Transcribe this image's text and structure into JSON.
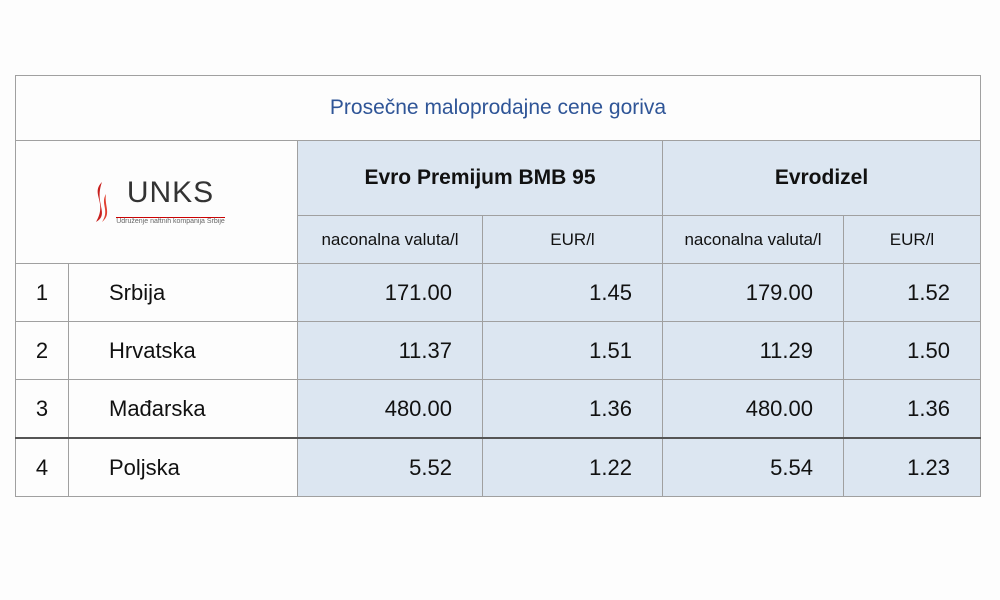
{
  "title": "Prosečne maloprodajne cene goriva",
  "logo": {
    "name": "UNKS",
    "tagline": "Udruženje naftnih kompanija Srbije"
  },
  "table": {
    "groups": [
      "Evro Premijum BMB 95",
      "Evrodizel"
    ],
    "subheaders": [
      "naconalna valuta/l",
      "EUR/l",
      "naconalna valuta/l",
      "EUR/l"
    ],
    "rows": [
      [
        "1",
        "Srbija",
        "171.00",
        "1.45",
        "179.00",
        "1.52"
      ],
      [
        "2",
        "Hrvatska",
        "11.37",
        "1.51",
        "11.29",
        "1.50"
      ],
      [
        "3",
        "Mađarska",
        "480.00",
        "1.36",
        "480.00",
        "1.36"
      ],
      [
        "4",
        "Poljska",
        "5.52",
        "1.22",
        "5.54",
        "1.23"
      ]
    ]
  }
}
